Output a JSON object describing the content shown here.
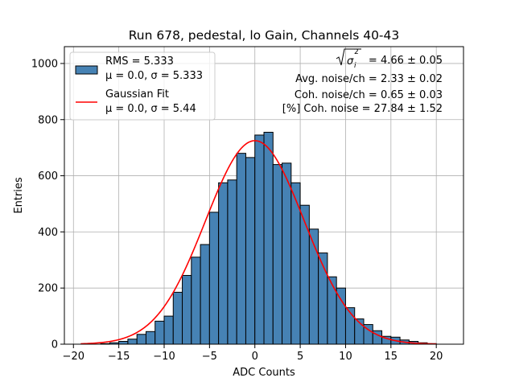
{
  "chart_data": {
    "type": "bar",
    "title": "Run 678, pedestal, lo Gain, Channels 40-43",
    "xlabel": "ADC Counts",
    "ylabel": "Entries",
    "xlim": [
      -21,
      23
    ],
    "ylim": [
      0,
      1060
    ],
    "xticks": [
      "−20",
      "−15",
      "−10",
      "−5",
      "0",
      "5",
      "10",
      "15",
      "20"
    ],
    "xtick_values": [
      -20,
      -15,
      -10,
      -5,
      0,
      5,
      10,
      15,
      20
    ],
    "yticks": [
      "0",
      "200",
      "400",
      "600",
      "800",
      "1000"
    ],
    "ytick_values": [
      0,
      200,
      400,
      600,
      800,
      1000
    ],
    "grid": true,
    "bar_color": "#4682b4",
    "bar_edge_color": "#000000",
    "fit_color": "#ff0000",
    "bins": {
      "start": -19,
      "width": 1,
      "values": [
        0,
        0,
        2,
        5,
        10,
        18,
        35,
        45,
        82,
        100,
        185,
        245,
        310,
        355,
        470,
        575,
        585,
        680,
        665,
        745,
        755,
        640,
        645,
        575,
        495,
        410,
        325,
        240,
        200,
        130,
        90,
        70,
        48,
        28,
        25,
        15,
        10,
        5,
        2
      ]
    },
    "fit": {
      "type": "gaussian",
      "mu": 0.0,
      "sigma": 5.44,
      "amplitude": 725,
      "x_range": [
        -19.2,
        20
      ]
    },
    "legend": {
      "position": "top-left",
      "entries": [
        {
          "name": "RMS = 5.333",
          "sub": "μ = 0.0, σ = 5.333",
          "kind": "patch"
        },
        {
          "name": "Gaussian Fit",
          "sub": "μ = 0.0, σ = 5.44",
          "kind": "line"
        }
      ]
    },
    "annotations": {
      "coh_sqrt_value": "= 4.66 ± 0.05",
      "avg_noise": "Avg. noise/ch = 2.33 ± 0.02",
      "coh_noise": "Coh. noise/ch = 0.65 ± 0.03",
      "coh_percent": "[%] Coh. noise = 27.84 ± 1.52"
    }
  }
}
